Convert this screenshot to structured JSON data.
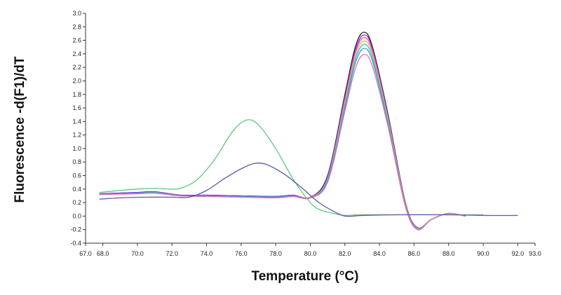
{
  "chart_data": {
    "type": "line",
    "title": "",
    "xlabel": "Temperature (°C)",
    "ylabel": "Fluorescence -d(F1)/dT",
    "xlim": [
      67.0,
      93.0
    ],
    "ylim": [
      -0.4,
      3.0
    ],
    "x_ticks": [
      67.0,
      68.0,
      70.0,
      72.0,
      74.0,
      76.0,
      78.0,
      80.0,
      82.0,
      84.0,
      86.0,
      88.0,
      90.0,
      92.0,
      93.0
    ],
    "x_tick_labels": [
      "67.0",
      "68.0",
      "70.0",
      "72.0",
      "74.0",
      "76.0",
      "78.0",
      "80.0",
      "82.0",
      "84.0",
      "86.0",
      "88.0",
      "90.0",
      "92.0",
      "93.0"
    ],
    "y_ticks": [
      -0.4,
      -0.2,
      0.0,
      0.2,
      0.4,
      0.6,
      0.8,
      1.0,
      1.2,
      1.4,
      1.6,
      1.8,
      2.0,
      2.2,
      2.4,
      2.6,
      2.8,
      3.0
    ],
    "y_tick_labels": [
      "-0.4",
      "-0.2",
      "0.0",
      "0.2",
      "0.4",
      "0.6",
      "0.8",
      "1.0",
      "1.2",
      "1.4",
      "1.6",
      "1.8",
      "2.0",
      "2.2",
      "2.4",
      "2.6",
      "2.8",
      "3.0"
    ],
    "grid": false,
    "legend": "none",
    "series": [
      {
        "color": "#222222",
        "x": [
          67.8,
          70.0,
          71.0,
          72.5,
          74.0,
          76.0,
          78.0,
          79.0,
          80.0,
          81.0,
          82.0,
          82.6,
          83.1,
          83.6,
          84.5,
          85.5,
          86.2,
          87.0,
          88.0,
          89.0
        ],
        "y": [
          0.33,
          0.35,
          0.36,
          0.31,
          0.31,
          0.3,
          0.29,
          0.31,
          0.28,
          0.6,
          1.8,
          2.5,
          2.72,
          2.5,
          1.5,
          0.2,
          -0.17,
          -0.05,
          0.04,
          0.0
        ]
      },
      {
        "color": "#8a2be2",
        "x": [
          67.8,
          70.0,
          71.0,
          72.5,
          74.0,
          76.0,
          78.0,
          79.0,
          80.0,
          81.0,
          82.0,
          82.6,
          83.1,
          83.6,
          84.5,
          85.5,
          86.2,
          87.0,
          88.0,
          89.0
        ],
        "y": [
          0.33,
          0.35,
          0.36,
          0.31,
          0.31,
          0.3,
          0.29,
          0.31,
          0.28,
          0.58,
          1.76,
          2.45,
          2.68,
          2.47,
          1.47,
          0.19,
          -0.17,
          -0.05,
          0.04,
          0.0
        ]
      },
      {
        "color": "#ff4fa0",
        "x": [
          67.8,
          70.0,
          71.0,
          72.5,
          74.0,
          76.0,
          78.0,
          79.0,
          80.0,
          81.0,
          82.0,
          82.6,
          83.1,
          83.6,
          84.5,
          85.5,
          86.2,
          87.0,
          88.0,
          89.0
        ],
        "y": [
          0.32,
          0.34,
          0.35,
          0.3,
          0.3,
          0.29,
          0.28,
          0.3,
          0.28,
          0.56,
          1.72,
          2.41,
          2.64,
          2.43,
          1.45,
          0.18,
          -0.18,
          -0.05,
          0.04,
          0.0
        ]
      },
      {
        "color": "#e8c040",
        "x": [
          67.8,
          70.0,
          71.0,
          72.5,
          74.0,
          76.0,
          78.0,
          79.0,
          80.0,
          81.0,
          82.0,
          82.6,
          83.1,
          83.6,
          84.5,
          85.5,
          86.2,
          87.0,
          88.0,
          89.0
        ],
        "y": [
          0.32,
          0.34,
          0.35,
          0.3,
          0.3,
          0.29,
          0.28,
          0.3,
          0.27,
          0.55,
          1.68,
          2.36,
          2.59,
          2.39,
          1.42,
          0.17,
          -0.18,
          -0.05,
          0.04,
          0.0
        ]
      },
      {
        "color": "#30c0e0",
        "x": [
          67.8,
          70.0,
          71.0,
          72.5,
          74.0,
          76.0,
          78.0,
          79.0,
          80.0,
          81.0,
          82.0,
          82.6,
          83.1,
          83.6,
          84.5,
          85.5,
          86.2,
          87.0,
          88.0,
          89.0
        ],
        "y": [
          0.32,
          0.34,
          0.35,
          0.3,
          0.3,
          0.29,
          0.28,
          0.3,
          0.27,
          0.54,
          1.64,
          2.31,
          2.54,
          2.34,
          1.39,
          0.16,
          -0.19,
          -0.05,
          0.04,
          0.0
        ]
      },
      {
        "color": "#409ad8",
        "x": [
          67.8,
          70.0,
          71.0,
          72.5,
          74.0,
          76.0,
          78.0,
          79.0,
          80.0,
          81.0,
          82.0,
          82.6,
          83.1,
          83.6,
          84.5,
          85.5,
          86.2,
          87.0,
          88.0,
          89.0
        ],
        "y": [
          0.32,
          0.34,
          0.34,
          0.3,
          0.3,
          0.29,
          0.28,
          0.3,
          0.27,
          0.52,
          1.6,
          2.26,
          2.48,
          2.29,
          1.36,
          0.15,
          -0.19,
          -0.05,
          0.04,
          0.0
        ]
      },
      {
        "color": "#e070b0",
        "x": [
          67.8,
          70.0,
          71.0,
          72.5,
          74.0,
          76.0,
          78.0,
          79.0,
          80.0,
          81.0,
          82.0,
          82.6,
          83.1,
          83.6,
          84.5,
          85.5,
          86.2,
          87.0,
          88.0,
          89.0
        ],
        "y": [
          0.32,
          0.33,
          0.34,
          0.3,
          0.29,
          0.28,
          0.27,
          0.29,
          0.27,
          0.5,
          1.55,
          2.18,
          2.39,
          2.21,
          1.32,
          0.14,
          -0.2,
          -0.05,
          0.04,
          0.0
        ]
      },
      {
        "color": "#5cc878",
        "x": [
          67.8,
          69.0,
          70.0,
          71.0,
          72.0,
          72.6,
          73.5,
          74.5,
          75.5,
          76.3,
          77.0,
          78.0,
          79.0,
          80.0,
          80.5,
          81.0,
          81.5,
          82.0,
          83.0,
          85.0,
          88.0,
          90.0
        ],
        "y": [
          0.35,
          0.38,
          0.4,
          0.41,
          0.4,
          0.42,
          0.55,
          0.85,
          1.25,
          1.42,
          1.35,
          1.0,
          0.55,
          0.2,
          0.1,
          0.06,
          0.03,
          0.01,
          0.02,
          0.02,
          0.02,
          0.02
        ]
      },
      {
        "color": "#5a5aa8",
        "x": [
          67.8,
          69.0,
          70.5,
          72.0,
          73.0,
          74.0,
          75.0,
          76.0,
          76.8,
          77.5,
          78.5,
          79.5,
          80.5,
          81.5,
          82.0,
          82.5,
          83.0,
          85.0,
          88.0,
          90.0,
          92.0
        ],
        "y": [
          0.25,
          0.27,
          0.28,
          0.28,
          0.28,
          0.38,
          0.55,
          0.7,
          0.78,
          0.76,
          0.62,
          0.42,
          0.2,
          0.05,
          0.0,
          0.0,
          0.01,
          0.02,
          0.02,
          0.01,
          0.01
        ]
      }
    ]
  }
}
